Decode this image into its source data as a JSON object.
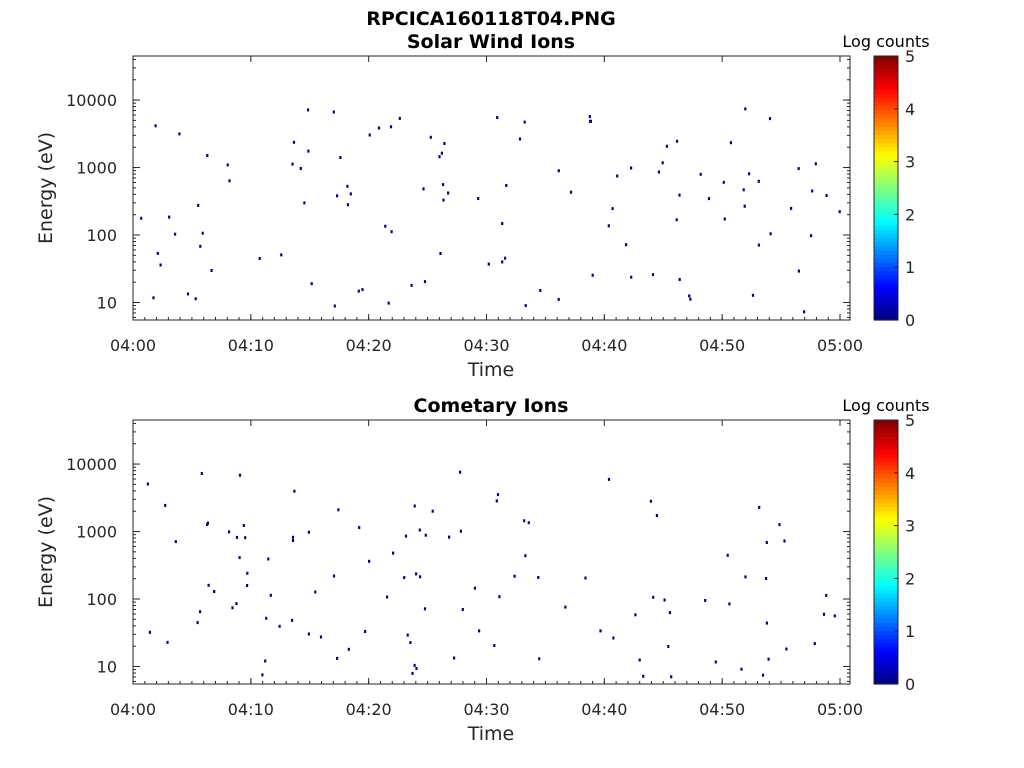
{
  "figure_title": "RPCICA160118T04.PNG",
  "chart_data": [
    {
      "type": "heatmap",
      "title": "Solar Wind Ions",
      "xlabel": "Time",
      "ylabel": "Energy (eV)",
      "x_ticks": [
        "04:00",
        "04:10",
        "04:20",
        "04:30",
        "04:40",
        "04:50",
        "05:00"
      ],
      "xlim": [
        "04:00",
        "05:00"
      ],
      "y_ticks": [
        "10",
        "100",
        "1000",
        "10000"
      ],
      "y_scale": "log",
      "ylim": [
        5.5,
        45000
      ],
      "colorbar": {
        "title": "Log counts",
        "ticks": [
          "0",
          "1",
          "2",
          "3",
          "4",
          "5"
        ],
        "range": [
          0,
          5
        ],
        "colormap": "jet"
      },
      "clusters": [
        {
          "time_min": 1.0,
          "e_min": 85,
          "e_max": 400,
          "level": 1.6
        },
        {
          "time_min": 6.0,
          "e_min": 180,
          "e_max": 300,
          "level": 1.8
        },
        {
          "time_min": 8.3,
          "e_min": 130,
          "e_max": 320,
          "level": 1.6
        },
        {
          "time_min": 11.0,
          "e_min": 120,
          "e_max": 300,
          "level": 1.4
        },
        {
          "time_min": 15.3,
          "e_min": 90,
          "e_max": 190,
          "level": 1.2
        },
        {
          "time_min": 21.0,
          "e_min": 90,
          "e_max": 320,
          "level": 1.5
        },
        {
          "time_min": 21.2,
          "e_min": 900,
          "e_max": 1600,
          "level": 1.3
        },
        {
          "time_min": 28.0,
          "e_min": 160,
          "e_max": 320,
          "level": 1.7
        },
        {
          "time_min": 30.6,
          "e_min": 120,
          "e_max": 400,
          "level": 1.6
        },
        {
          "time_min": 30.8,
          "e_min": 900,
          "e_max": 1800,
          "level": 1.4
        },
        {
          "time_min": 34.0,
          "e_min": 120,
          "e_max": 320,
          "level": 1.5
        },
        {
          "time_min": 37.8,
          "e_min": 140,
          "e_max": 300,
          "level": 1.4
        },
        {
          "time_min": 40.0,
          "e_min": 120,
          "e_max": 400,
          "level": 1.4
        },
        {
          "time_min": 40.0,
          "e_min": 900,
          "e_max": 1800,
          "level": 1.3
        },
        {
          "time_min": 43.0,
          "e_min": 110,
          "e_max": 260,
          "level": 1.3
        },
        {
          "time_min": 47.3,
          "e_min": 150,
          "e_max": 300,
          "level": 1.2
        },
        {
          "time_min": 50.0,
          "e_min": 900,
          "e_max": 1500,
          "level": 1.4
        },
        {
          "time_min": 52.3,
          "e_min": 900,
          "e_max": 1500,
          "level": 1.4
        },
        {
          "time_min": 56.5,
          "e_min": 110,
          "e_max": 400,
          "level": 1.9
        },
        {
          "time_min": 55.5,
          "e_min": 900,
          "e_max": 1500,
          "level": 1.7
        },
        {
          "time_min": 59.5,
          "e_min": 110,
          "e_max": 300,
          "level": 1.5
        }
      ]
    },
    {
      "type": "heatmap",
      "title": "Cometary Ions",
      "xlabel": "Time",
      "ylabel": "Energy (eV)",
      "x_ticks": [
        "04:00",
        "04:10",
        "04:20",
        "04:30",
        "04:40",
        "04:50",
        "05:00"
      ],
      "xlim": [
        "04:00",
        "05:00"
      ],
      "y_ticks": [
        "10",
        "100",
        "1000",
        "10000"
      ],
      "y_scale": "log",
      "ylim": [
        5.5,
        45000
      ],
      "colorbar": {
        "title": "Log counts",
        "ticks": [
          "0",
          "1",
          "2",
          "3",
          "4",
          "5"
        ],
        "range": [
          0,
          5
        ],
        "colormap": "jet"
      },
      "clusters": [
        {
          "time_min": 1.3,
          "e_min": 90,
          "e_max": 360,
          "level": 1.3
        },
        {
          "time_min": 1.5,
          "e_min": 6,
          "e_max": 30,
          "level": 1.3
        },
        {
          "time_min": 5.0,
          "e_min": 6,
          "e_max": 35,
          "level": 1.2
        },
        {
          "time_min": 8.3,
          "e_min": 6,
          "e_max": 35,
          "level": 1.2
        },
        {
          "time_min": 11.0,
          "e_min": 6,
          "e_max": 18,
          "level": 1.0
        },
        {
          "time_min": 14.2,
          "e_min": 6,
          "e_max": 20,
          "level": 1.0
        },
        {
          "time_min": 17.8,
          "e_min": 6,
          "e_max": 30,
          "level": 1.2
        },
        {
          "time_min": 21.0,
          "e_min": 6,
          "e_max": 35,
          "level": 1.6
        },
        {
          "time_min": 21.0,
          "e_min": 130,
          "e_max": 300,
          "level": 1.2
        },
        {
          "time_min": 24.3,
          "e_min": 6,
          "e_max": 30,
          "level": 1.0
        },
        {
          "time_min": 27.5,
          "e_min": 6,
          "e_max": 35,
          "level": 1.4
        },
        {
          "time_min": 30.8,
          "e_min": 6,
          "e_max": 40,
          "level": 1.5
        },
        {
          "time_min": 30.8,
          "e_min": 120,
          "e_max": 350,
          "level": 1.2
        },
        {
          "time_min": 34.0,
          "e_min": 6,
          "e_max": 35,
          "level": 1.5
        },
        {
          "time_min": 36.8,
          "e_min": 6,
          "e_max": 30,
          "level": 1.6
        },
        {
          "time_min": 40.0,
          "e_min": 6,
          "e_max": 30,
          "level": 1.4
        },
        {
          "time_min": 40.0,
          "e_min": 140,
          "e_max": 400,
          "level": 1.4
        },
        {
          "time_min": 43.3,
          "e_min": 6,
          "e_max": 30,
          "level": 1.3
        },
        {
          "time_min": 46.5,
          "e_min": 6,
          "e_max": 35,
          "level": 1.4
        },
        {
          "time_min": 49.8,
          "e_min": 6,
          "e_max": 30,
          "level": 1.2
        },
        {
          "time_min": 53.0,
          "e_min": 6,
          "e_max": 25,
          "level": 1.1
        },
        {
          "time_min": 56.2,
          "e_min": 6,
          "e_max": 35,
          "level": 1.5
        },
        {
          "time_min": 56.8,
          "e_min": 110,
          "e_max": 400,
          "level": 1.6
        },
        {
          "time_min": 59.5,
          "e_min": 150,
          "e_max": 300,
          "level": 1.8
        },
        {
          "time_min": 59.7,
          "e_min": 6,
          "e_max": 15,
          "level": 1.0
        }
      ]
    }
  ]
}
